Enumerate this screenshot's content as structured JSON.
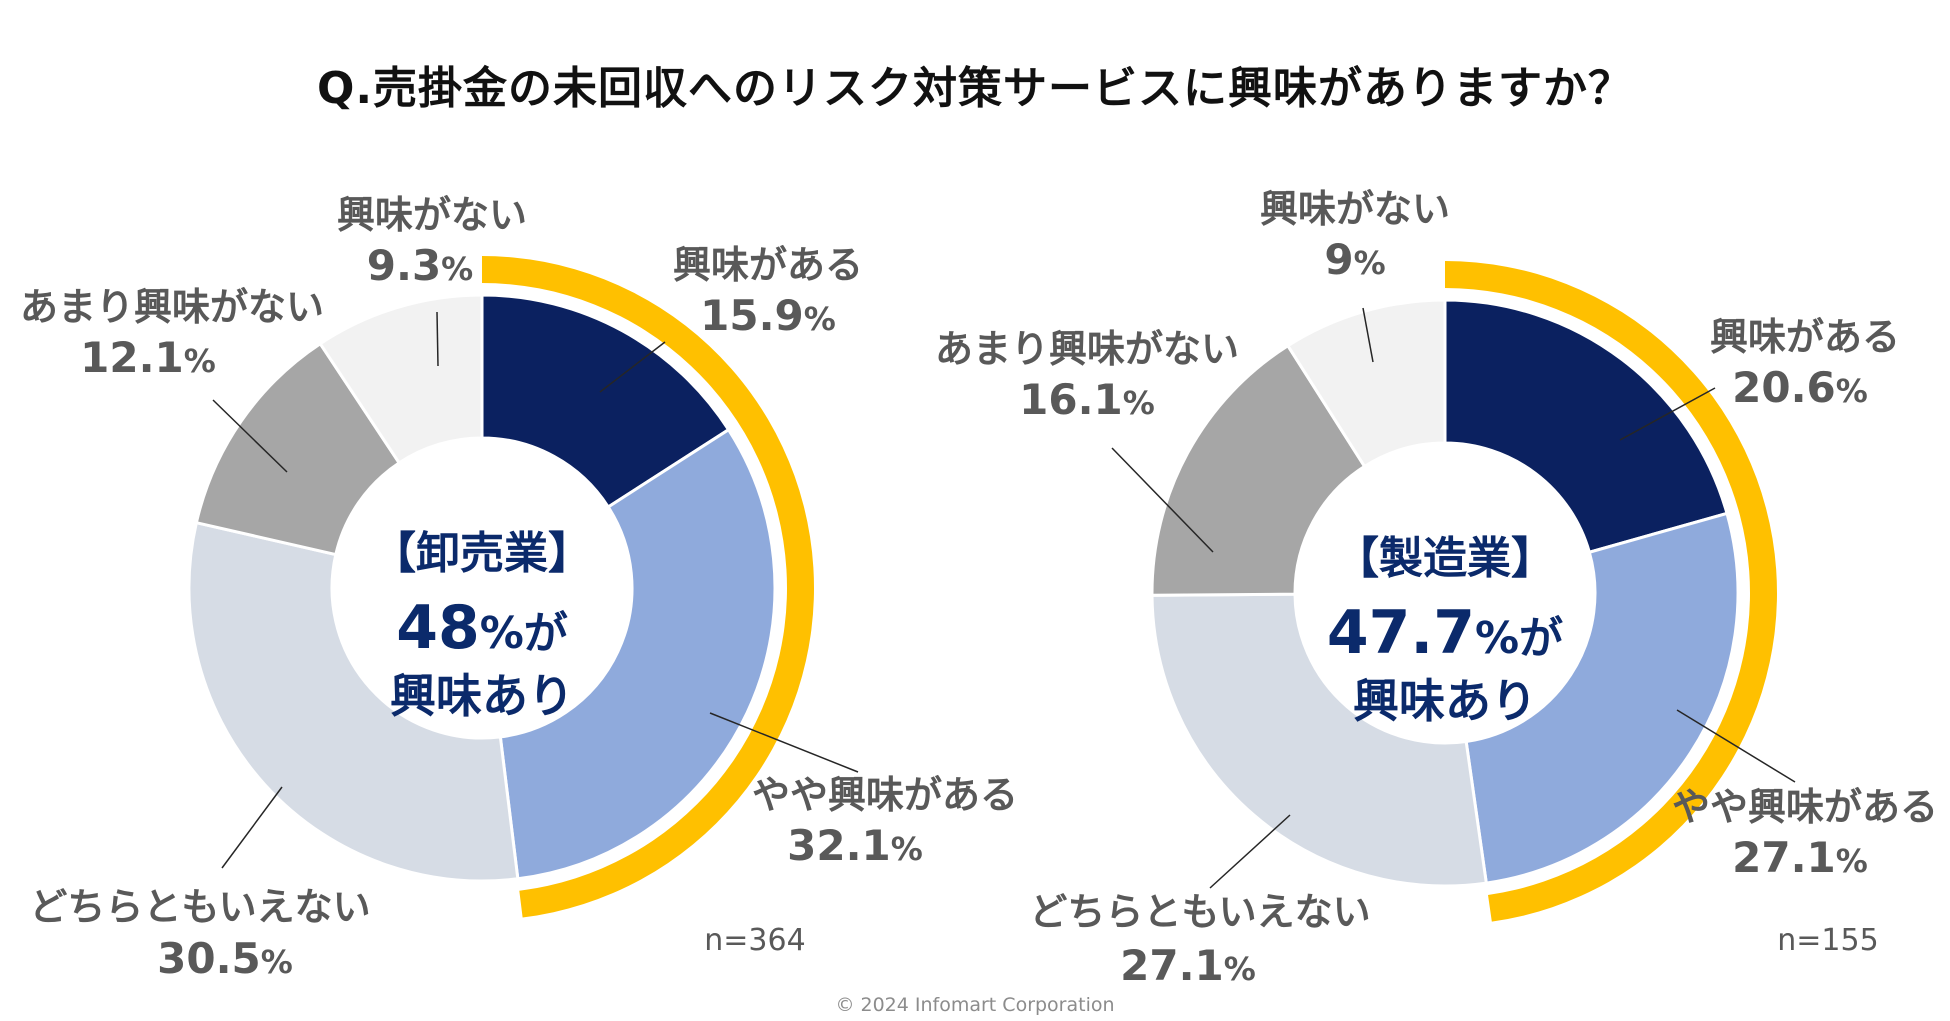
{
  "title": "Q.売掛金の未回収へのリスク対策サービスに興味がありますか？",
  "copyright": "© 2024 Infomart Corporation",
  "chart_data": [
    {
      "type": "pie",
      "style": "donut",
      "center_label": {
        "head": "【卸売業】",
        "value": "48",
        "unit": "%が",
        "sub": "興味あり"
      },
      "n_label": "n=364",
      "interest_total": 48,
      "categories": [
        "興味がある",
        "やや興味がある",
        "どちらともいえない",
        "あまり興味がない",
        "興味がない"
      ],
      "values": [
        15.9,
        32.1,
        30.5,
        12.1,
        9.3
      ],
      "value_labels": [
        "15.9",
        "32.1",
        "30.5",
        "12.1",
        "9.3"
      ],
      "unit": "%",
      "colors": [
        "#0b2160",
        "#8faadc",
        "#d6dce5",
        "#a6a6a6",
        "#f2f2f2"
      ],
      "highlight_color": "#ffc000"
    },
    {
      "type": "pie",
      "style": "donut",
      "center_label": {
        "head": "【製造業】",
        "value": "47.7",
        "unit": "%が",
        "sub": "興味あり"
      },
      "n_label": "n=155",
      "interest_total": 47.7,
      "categories": [
        "興味がある",
        "やや興味がある",
        "どちらともいえない",
        "あまり興味がない",
        "興味がない"
      ],
      "values": [
        20.6,
        27.1,
        27.1,
        16.1,
        9
      ],
      "value_labels": [
        "20.6",
        "27.1",
        "27.1",
        "16.1",
        "9"
      ],
      "unit": "%",
      "colors": [
        "#0b2160",
        "#8faadc",
        "#d6dce5",
        "#a6a6a6",
        "#f2f2f2"
      ],
      "highlight_color": "#ffc000"
    }
  ]
}
